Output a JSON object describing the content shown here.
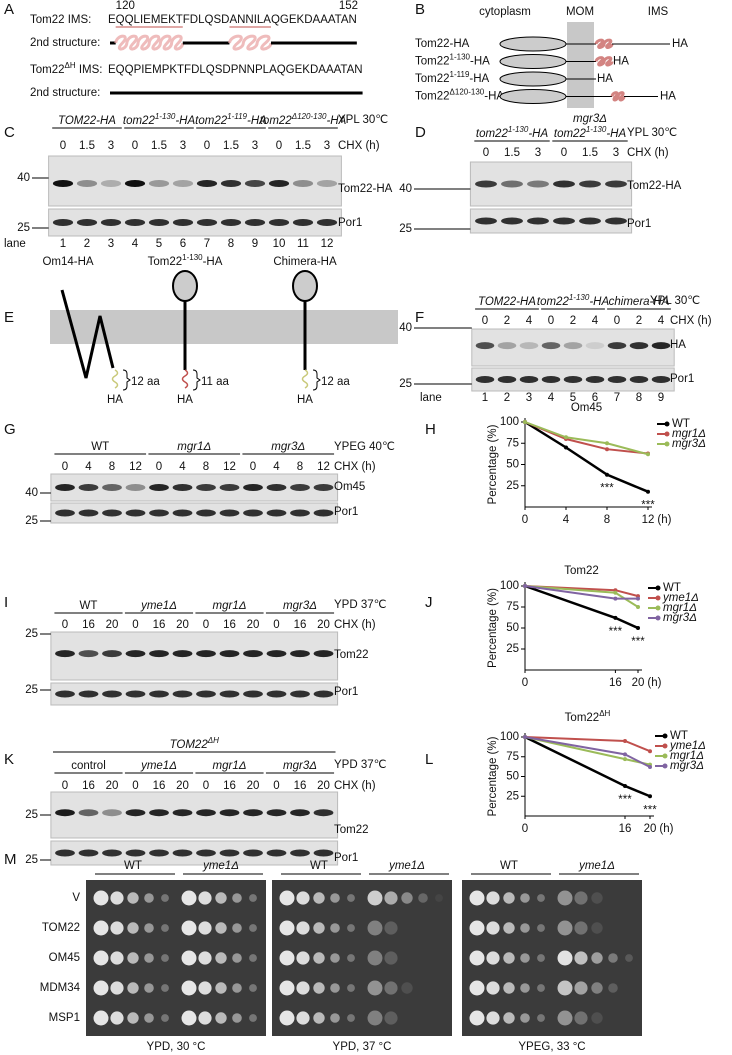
{
  "panel_labels": [
    "A",
    "B",
    "C",
    "D",
    "E",
    "F",
    "G",
    "H",
    "I",
    "J",
    "K",
    "L",
    "M"
  ],
  "A": {
    "start": 120,
    "end": 152,
    "rows": [
      {
        "name": {
          "name": "Tom22",
          "tail": " IMS:"
        },
        "seq": [
          {
            "text": "E"
          },
          {
            "text": "QQLIEMEKT",
            "color": "#c0504d",
            "helix": true
          },
          {
            "text": "FDLQSD"
          },
          {
            "text": "ANNILA",
            "color": "#c0504d",
            "helix": true
          },
          {
            "text": "QGEKDAAATAN"
          }
        ],
        "structure": "2nd structure:"
      },
      {
        "name": {
          "name": "Tom22",
          "sup": "ΔH",
          "tail": " IMS:"
        },
        "seq": [
          {
            "text": "EQQ"
          },
          {
            "text": "P",
            "color": "#3a9a3a"
          },
          {
            "text": "IEM"
          },
          {
            "text": "P",
            "color": "#3a9a3a"
          },
          {
            "text": "KTFDLQSD"
          },
          {
            "text": "P",
            "color": "#3a9a3a"
          },
          {
            "text": "NN"
          },
          {
            "text": "P",
            "color": "#3a9a3a"
          },
          {
            "text": "LAQGEKDAAATAN"
          }
        ],
        "structure": "2nd structure:"
      }
    ]
  },
  "B": {
    "headers": [
      "cytoplasm",
      "MOM",
      "IMS"
    ],
    "constructs": [
      {
        "name": "Tom22",
        "tail": "-HA",
        "tag": "HA"
      },
      {
        "name": "Tom22",
        "sup": "1-130",
        "tail": "-HA",
        "tag": "HA"
      },
      {
        "name": "Tom22",
        "sup": "1-119",
        "tail": "-HA",
        "tag": "HA"
      },
      {
        "name": "Tom22",
        "sup": "Δ120-130",
        "tail": "-HA",
        "tag": "HA"
      }
    ]
  },
  "C": {
    "groups": [
      {
        "name": "TOM22-HA",
        "italic": true,
        "times": [
          0,
          1.5,
          3
        ]
      },
      {
        "name": "tom22",
        "sup": "1-130",
        "tail": "-HA",
        "italic": true,
        "times": [
          0,
          1.5,
          3
        ]
      },
      {
        "name": "tom22",
        "sup": "1-119",
        "tail": "-HA",
        "italic": true,
        "times": [
          0,
          1.5,
          3
        ]
      },
      {
        "name": "tom22",
        "sup": "Δ120-130",
        "tail": "-HA",
        "italic": true,
        "times": [
          0,
          1.5,
          3
        ]
      }
    ],
    "condition": "YPL 30℃",
    "chx": "CHX (h)",
    "bands": [
      "Tom22-HA",
      "Por1"
    ],
    "markers": [
      40,
      25
    ],
    "lane_label": "lane",
    "lanes": [
      1,
      2,
      3,
      4,
      5,
      6,
      7,
      8,
      9,
      10,
      11,
      12
    ]
  },
  "D": {
    "super": {
      "name": "mgr3Δ"
    },
    "groups": [
      {
        "name": "tom22",
        "sup": "1-130",
        "tail": "-HA",
        "italic": true,
        "times": [
          0,
          1.5,
          3
        ]
      },
      {
        "name": "tom22",
        "sup": "1-130",
        "tail": "-HA",
        "italic": true,
        "times": [
          0,
          1.5,
          3
        ]
      }
    ],
    "condition": "YPL 30℃",
    "chx": "CHX (h)",
    "bands": [
      "Tom22-HA",
      "Por1"
    ],
    "markers": [
      40,
      25
    ]
  },
  "E": {
    "constructs": [
      {
        "label": {
          "name": "Om14-HA"
        },
        "linker": "12 aa",
        "tag": "HA"
      },
      {
        "label": {
          "name": "Tom22",
          "sup": "1-130",
          "tail": "-HA"
        },
        "linker": "11 aa",
        "tag": "HA"
      },
      {
        "label": {
          "name": "Chimera-HA"
        },
        "linker": "12 aa",
        "tag": "HA"
      }
    ]
  },
  "F": {
    "groups": [
      {
        "name": "TOM22-HA",
        "italic": true,
        "times": [
          0,
          2,
          4
        ]
      },
      {
        "name": "tom22",
        "sup": "1-130",
        "tail": "-HA",
        "italic": true,
        "times": [
          0,
          2,
          4
        ]
      },
      {
        "name": "chimera-HA",
        "italic": true,
        "times": [
          0,
          2,
          4
        ]
      }
    ],
    "condition": "YPL 30℃",
    "chx": "CHX (h)",
    "bands": [
      "HA",
      "Por1"
    ],
    "markers": [
      40,
      25
    ],
    "lane_label": "lane",
    "lanes": [
      1,
      2,
      3,
      4,
      5,
      6,
      7,
      8,
      9
    ]
  },
  "G": {
    "groups": [
      {
        "name": "WT",
        "times": [
          0,
          4,
          8,
          12
        ]
      },
      {
        "name": "mgr1Δ",
        "italic": true,
        "times": [
          0,
          4,
          8,
          12
        ]
      },
      {
        "name": "mgr3Δ",
        "italic": true,
        "times": [
          0,
          4,
          8,
          12
        ]
      }
    ],
    "condition": "YPEG 40℃",
    "chx": "CHX (h)",
    "bands": [
      "Om45",
      "Por1"
    ],
    "markers": [
      40,
      25
    ]
  },
  "I": {
    "groups": [
      {
        "name": "WT",
        "times": [
          0,
          16,
          20
        ]
      },
      {
        "name": "yme1Δ",
        "italic": true,
        "times": [
          0,
          16,
          20
        ]
      },
      {
        "name": "mgr1Δ",
        "italic": true,
        "times": [
          0,
          16,
          20
        ]
      },
      {
        "name": "mgr3Δ",
        "italic": true,
        "times": [
          0,
          16,
          20
        ]
      }
    ],
    "condition": "YPD 37℃",
    "chx": "CHX (h)",
    "bands": [
      "Tom22",
      "Por1"
    ],
    "markers": [
      25,
      25
    ]
  },
  "K": {
    "super": {
      "name": "TOM22",
      "sup": "ΔH",
      "italic": true
    },
    "groups": [
      {
        "name": "control",
        "times": [
          0,
          16,
          20
        ]
      },
      {
        "name": "yme1Δ",
        "italic": true,
        "times": [
          0,
          16,
          20
        ]
      },
      {
        "name": "mgr1Δ",
        "italic": true,
        "times": [
          0,
          16,
          20
        ]
      },
      {
        "name": "mgr3Δ",
        "italic": true,
        "times": [
          0,
          16,
          20
        ]
      }
    ],
    "condition": "YPD 37℃",
    "chx": "CHX (h)",
    "bands": [
      "Tom22",
      "Por1"
    ],
    "markers": [
      25,
      25
    ]
  },
  "M": {
    "plates": [
      {
        "strains": [
          "WT",
          "yme1Δ"
        ],
        "caption": "YPD, 30 °C"
      },
      {
        "strains": [
          "WT",
          "yme1Δ"
        ],
        "caption": "YPD, 37 °C"
      },
      {
        "strains": [
          "WT",
          "yme1Δ"
        ],
        "caption": "YPEG, 33 °C"
      }
    ],
    "rows": [
      "V",
      "TOM22",
      "OM45",
      "MDM34",
      "MSP1"
    ]
  },
  "chart_data": [
    {
      "type": "line",
      "title": "Om45",
      "y_label": "Percentage (%)",
      "x": [
        0,
        4,
        8,
        12
      ],
      "xlim": [
        0,
        12
      ],
      "xticks": [
        0,
        4,
        8,
        12
      ],
      "x_unit": "(h)",
      "ylim": [
        0,
        100
      ],
      "yticks": [
        25,
        50,
        75,
        100
      ],
      "series": [
        {
          "name": "WT",
          "color": "#000000",
          "values": [
            100,
            70,
            38,
            18
          ]
        },
        {
          "name": "mgr1Δ",
          "color": "#c0504d",
          "values": [
            100,
            80,
            68,
            63
          ]
        },
        {
          "name": "mgr3Δ",
          "color": "#9bbb59",
          "values": [
            100,
            82,
            75,
            62
          ]
        }
      ],
      "annotations": [
        {
          "text": "***",
          "x": 8
        },
        {
          "text": "***",
          "x": 12
        }
      ]
    },
    {
      "type": "line",
      "title": "Tom22",
      "y_label": "Percentage (%)",
      "x": [
        0,
        16,
        20
      ],
      "xlim": [
        0,
        20
      ],
      "xticks": [
        0,
        16,
        20
      ],
      "x_unit": "(h)",
      "ylim": [
        0,
        100
      ],
      "yticks": [
        25,
        50,
        75,
        100
      ],
      "series": [
        {
          "name": "WT",
          "color": "#000000",
          "values": [
            100,
            62,
            50
          ]
        },
        {
          "name": "yme1Δ",
          "color": "#c0504d",
          "values": [
            100,
            95,
            88
          ]
        },
        {
          "name": "mgr1Δ",
          "color": "#9bbb59",
          "values": [
            100,
            92,
            75
          ]
        },
        {
          "name": "mgr3Δ",
          "color": "#8064a2",
          "values": [
            100,
            85,
            85
          ]
        }
      ],
      "annotations": [
        {
          "text": "***",
          "x": 16
        },
        {
          "text": "***",
          "x": 20
        }
      ]
    },
    {
      "type": "line",
      "title": "Tom22",
      "title_sup": "ΔH",
      "y_label": "Percentage (%)",
      "x": [
        0,
        16,
        20
      ],
      "xlim": [
        0,
        20
      ],
      "xticks": [
        0,
        16,
        20
      ],
      "x_unit": "(h)",
      "ylim": [
        0,
        100
      ],
      "yticks": [
        25,
        50,
        75,
        100
      ],
      "series": [
        {
          "name": "WT",
          "color": "#000000",
          "values": [
            100,
            38,
            25
          ]
        },
        {
          "name": "yme1Δ",
          "color": "#c0504d",
          "values": [
            100,
            95,
            82
          ]
        },
        {
          "name": "mgr1Δ",
          "color": "#9bbb59",
          "values": [
            100,
            72,
            65
          ]
        },
        {
          "name": "mgr3Δ",
          "color": "#8064a2",
          "values": [
            100,
            78,
            62
          ]
        }
      ],
      "annotations": [
        {
          "text": "***",
          "x": 16
        },
        {
          "text": "***",
          "x": 20
        }
      ]
    }
  ]
}
